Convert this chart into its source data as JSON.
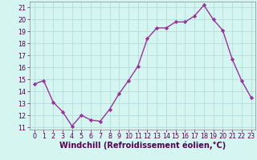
{
  "x": [
    0,
    1,
    2,
    3,
    4,
    5,
    6,
    7,
    8,
    9,
    10,
    11,
    12,
    13,
    14,
    15,
    16,
    17,
    18,
    19,
    20,
    21,
    22,
    23
  ],
  "y": [
    14.6,
    14.9,
    13.1,
    12.3,
    11.1,
    12.0,
    11.6,
    11.5,
    12.5,
    13.8,
    14.9,
    16.1,
    18.4,
    19.3,
    19.3,
    19.8,
    19.8,
    20.3,
    21.2,
    20.0,
    19.1,
    16.7,
    14.9,
    13.5
  ],
  "line_color": "#993399",
  "marker": "D",
  "marker_size": 2.2,
  "bg_color": "#d4f5f0",
  "grid_color": "#b0d8d8",
  "xlabel": "Windchill (Refroidissement éolien,°C)",
  "ylim": [
    10.8,
    21.5
  ],
  "yticks": [
    11,
    12,
    13,
    14,
    15,
    16,
    17,
    18,
    19,
    20,
    21
  ],
  "xticks": [
    0,
    1,
    2,
    3,
    4,
    5,
    6,
    7,
    8,
    9,
    10,
    11,
    12,
    13,
    14,
    15,
    16,
    17,
    18,
    19,
    20,
    21,
    22,
    23
  ],
  "tick_label_size": 5.8,
  "xlabel_size": 7.0,
  "line_width": 1.0
}
